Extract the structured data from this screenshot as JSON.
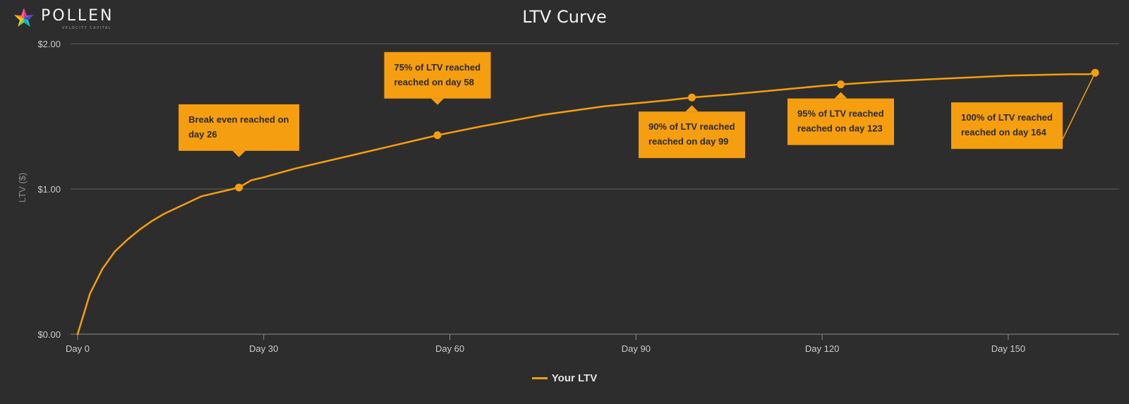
{
  "brand": {
    "name": "POLLEN",
    "tagline": "VELOCITY CAPITAL",
    "logo_icon": "pollen-star-logo-icon"
  },
  "colors": {
    "background": "#2e2d2d",
    "line": "#f59e0f",
    "annotation_fill": "#f59e0f",
    "gridline": "#5e5e5e",
    "text": "#cccccc"
  },
  "chart_data": {
    "type": "line",
    "title": "LTV Curve",
    "xlabel": "",
    "ylabel": "LTV ($)",
    "xlim": [
      0,
      164
    ],
    "ylim": [
      0,
      2
    ],
    "xticks": [
      0,
      30,
      60,
      90,
      120,
      150
    ],
    "xtick_labels": [
      "Day 0",
      "Day 30",
      "Day 60",
      "Day 90",
      "Day 120",
      "Day 150"
    ],
    "yticks": [
      0,
      1,
      2
    ],
    "ytick_labels": [
      "$0.00",
      "$1.00",
      "$2.00"
    ],
    "grid": "horizontal",
    "legend_position": "bottom-center",
    "series": [
      {
        "name": "Your LTV",
        "x": [
          0,
          2,
          4,
          6,
          8,
          10,
          12,
          14,
          16,
          18,
          20,
          22,
          24,
          26,
          28,
          30,
          35,
          40,
          45,
          50,
          55,
          58,
          65,
          70,
          75,
          80,
          85,
          90,
          95,
          99,
          105,
          110,
          115,
          120,
          123,
          130,
          140,
          150,
          160,
          163,
          164
        ],
        "y": [
          0,
          0.28,
          0.45,
          0.57,
          0.65,
          0.72,
          0.78,
          0.83,
          0.87,
          0.91,
          0.95,
          0.97,
          0.99,
          1.01,
          1.06,
          1.08,
          1.14,
          1.19,
          1.24,
          1.29,
          1.34,
          1.37,
          1.43,
          1.47,
          1.51,
          1.54,
          1.57,
          1.59,
          1.61,
          1.63,
          1.65,
          1.67,
          1.69,
          1.71,
          1.72,
          1.74,
          1.76,
          1.78,
          1.79,
          1.79,
          1.8
        ]
      }
    ],
    "annotations": [
      {
        "x": 26,
        "y": 1.01,
        "lines": [
          "Break even reached on",
          "day 26"
        ],
        "placement": "above"
      },
      {
        "x": 58,
        "y": 1.37,
        "lines": [
          "75% of LTV reached",
          "reached on day 58"
        ],
        "placement": "above"
      },
      {
        "x": 99,
        "y": 1.63,
        "lines": [
          "90% of LTV reached",
          "reached on day 99"
        ],
        "placement": "below"
      },
      {
        "x": 123,
        "y": 1.72,
        "lines": [
          "95% of LTV reached",
          "reached on day 123"
        ],
        "placement": "below"
      },
      {
        "x": 164,
        "y": 1.8,
        "lines": [
          "100% of LTV reached",
          "reached on day 164"
        ],
        "placement": "below-left"
      }
    ]
  }
}
